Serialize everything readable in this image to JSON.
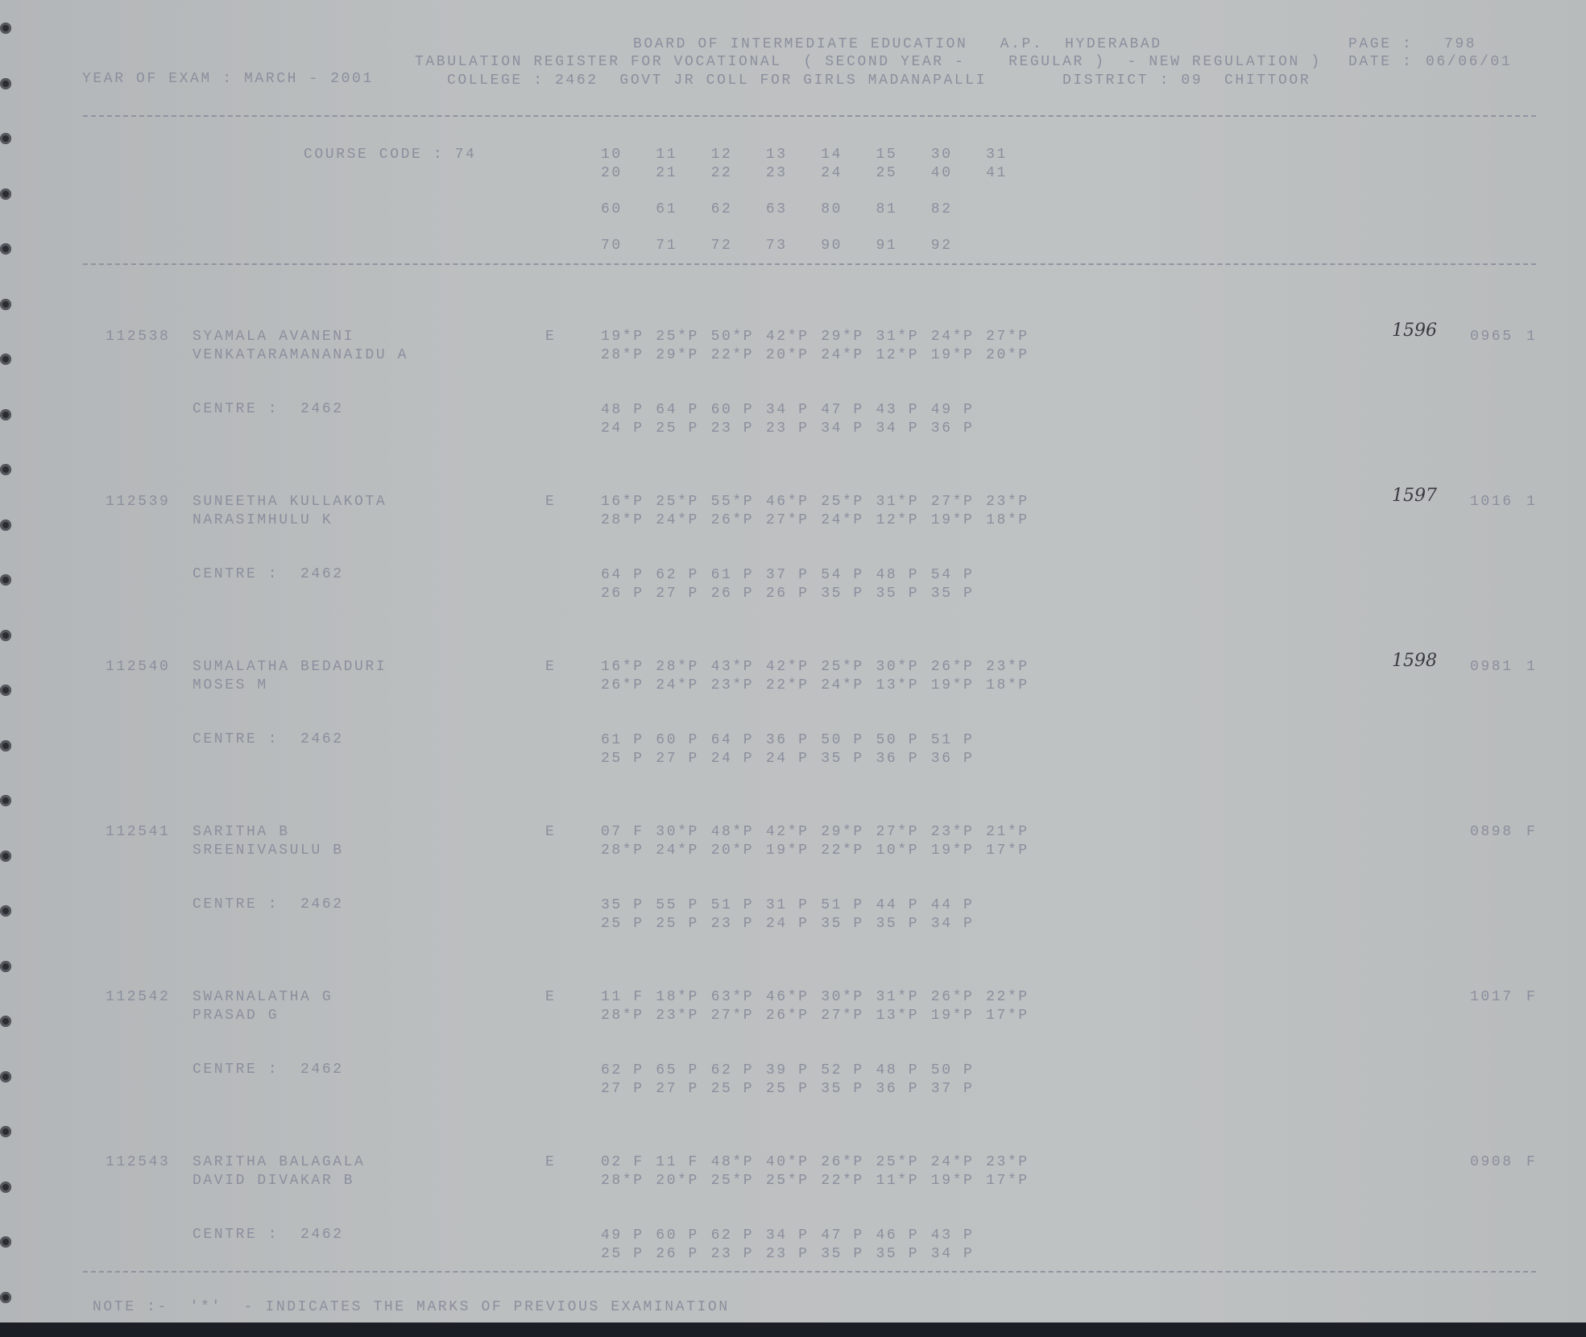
{
  "header": {
    "board": "BOARD OF INTERMEDIATE EDUCATION   A.P.  HYDERABAD",
    "page_label": "PAGE :",
    "page_number": "798",
    "register": "TABULATION REGISTER FOR VOCATIONAL  ( SECOND YEAR -    REGULAR )  - NEW REGULATION )",
    "date_label": "DATE :",
    "date": "06/06/01",
    "year_of_exam": "YEAR OF EXAM : MARCH - 2001",
    "college": "COLLEGE : 2462  GOVT JR COLL FOR GIRLS MADANAPALLI",
    "district": "DISTRICT : 09  CHITTOOR"
  },
  "course": {
    "label": "COURSE CODE : 74",
    "code_rows": [
      [
        "10",
        "11",
        "12",
        "13",
        "14",
        "15",
        "30",
        "31"
      ],
      [
        "20",
        "21",
        "22",
        "23",
        "24",
        "25",
        "40",
        "41"
      ],
      [
        "60",
        "61",
        "62",
        "63",
        "80",
        "81",
        "82"
      ],
      [
        "70",
        "71",
        "72",
        "73",
        "90",
        "91",
        "92"
      ]
    ]
  },
  "records": [
    {
      "roll": "112538",
      "name": "SYAMALA AVANENI",
      "parent": "VENKATARAMANANAIDU A",
      "medium": "E",
      "centre": "CENTRE :  2462",
      "marks1": [
        "19*P",
        "25*P",
        "50*P",
        "42*P",
        "29*P",
        "31*P",
        "24*P",
        "27*P"
      ],
      "marks2": [
        "28*P",
        "29*P",
        "22*P",
        "20*P",
        "24*P",
        "12*P",
        "19*P",
        "20*P"
      ],
      "marks3": [
        "48 P",
        "64 P",
        "60 P",
        "34 P",
        "47 P",
        "43 P",
        "49 P"
      ],
      "marks4": [
        "24 P",
        "25 P",
        "23 P",
        "23 P",
        "34 P",
        "34 P",
        "36 P"
      ],
      "handwritten": "1596",
      "total": "0965",
      "result": "1"
    },
    {
      "roll": "112539",
      "name": "SUNEETHA KULLAKOTA",
      "parent": "NARASIMHULU K",
      "medium": "E",
      "centre": "CENTRE :  2462",
      "marks1": [
        "16*P",
        "25*P",
        "55*P",
        "46*P",
        "25*P",
        "31*P",
        "27*P",
        "23*P"
      ],
      "marks2": [
        "28*P",
        "24*P",
        "26*P",
        "27*P",
        "24*P",
        "12*P",
        "19*P",
        "18*P"
      ],
      "marks3": [
        "64 P",
        "62 P",
        "61 P",
        "37 P",
        "54 P",
        "48 P",
        "54 P"
      ],
      "marks4": [
        "26 P",
        "27 P",
        "26 P",
        "26 P",
        "35 P",
        "35 P",
        "35 P"
      ],
      "handwritten": "1597",
      "total": "1016",
      "result": "1"
    },
    {
      "roll": "112540",
      "name": "SUMALATHA BEDADURI",
      "parent": "MOSES M",
      "medium": "E",
      "centre": "CENTRE :  2462",
      "marks1": [
        "16*P",
        "28*P",
        "43*P",
        "42*P",
        "25*P",
        "30*P",
        "26*P",
        "23*P"
      ],
      "marks2": [
        "26*P",
        "24*P",
        "23*P",
        "22*P",
        "24*P",
        "13*P",
        "19*P",
        "18*P"
      ],
      "marks3": [
        "61 P",
        "60 P",
        "64 P",
        "36 P",
        "50 P",
        "50 P",
        "51 P"
      ],
      "marks4": [
        "25 P",
        "27 P",
        "24 P",
        "24 P",
        "35 P",
        "36 P",
        "36 P"
      ],
      "handwritten": "1598",
      "total": "0981",
      "result": "1"
    },
    {
      "roll": "112541",
      "name": "SARITHA B",
      "parent": "SREENIVASULU B",
      "medium": "E",
      "centre": "CENTRE :  2462",
      "marks1": [
        "07 F",
        "30*P",
        "48*P",
        "42*P",
        "29*P",
        "27*P",
        "23*P",
        "21*P"
      ],
      "marks2": [
        "28*P",
        "24*P",
        "20*P",
        "19*P",
        "22*P",
        "10*P",
        "19*P",
        "17*P"
      ],
      "marks3": [
        "35 P",
        "55 P",
        "51 P",
        "31 P",
        "51 P",
        "44 P",
        "44 P"
      ],
      "marks4": [
        "25 P",
        "25 P",
        "23 P",
        "24 P",
        "35 P",
        "35 P",
        "34 P"
      ],
      "handwritten": "",
      "total": "0898",
      "result": "F"
    },
    {
      "roll": "112542",
      "name": "SWARNALATHA G",
      "parent": "PRASAD G",
      "medium": "E",
      "centre": "CENTRE :  2462",
      "marks1": [
        "11 F",
        "18*P",
        "63*P",
        "46*P",
        "30*P",
        "31*P",
        "26*P",
        "22*P"
      ],
      "marks2": [
        "28*P",
        "23*P",
        "27*P",
        "26*P",
        "27*P",
        "13*P",
        "19*P",
        "17*P"
      ],
      "marks3": [
        "62 P",
        "65 P",
        "62 P",
        "39 P",
        "52 P",
        "48 P",
        "50 P"
      ],
      "marks4": [
        "27 P",
        "27 P",
        "25 P",
        "25 P",
        "35 P",
        "36 P",
        "37 P"
      ],
      "handwritten": "",
      "total": "1017",
      "result": "F"
    },
    {
      "roll": "112543",
      "name": "SARITHA BALAGALA",
      "parent": "DAVID DIVAKAR B",
      "medium": "E",
      "centre": "CENTRE :  2462",
      "marks1": [
        "02 F",
        "11 F",
        "48*P",
        "40*P",
        "26*P",
        "25*P",
        "24*P",
        "23*P"
      ],
      "marks2": [
        "28*P",
        "20*P",
        "25*P",
        "25*P",
        "22*P",
        "11*P",
        "19*P",
        "17*P"
      ],
      "marks3": [
        "49 P",
        "60 P",
        "62 P",
        "34 P",
        "47 P",
        "46 P",
        "43 P"
      ],
      "marks4": [
        "25 P",
        "26 P",
        "23 P",
        "23 P",
        "35 P",
        "35 P",
        "34 P"
      ],
      "handwritten": "",
      "total": "0908",
      "result": "F"
    }
  ],
  "footer": {
    "note": "NOTE :-  '*'  - INDICATES THE MARKS OF PREVIOUS EXAMINATION"
  }
}
